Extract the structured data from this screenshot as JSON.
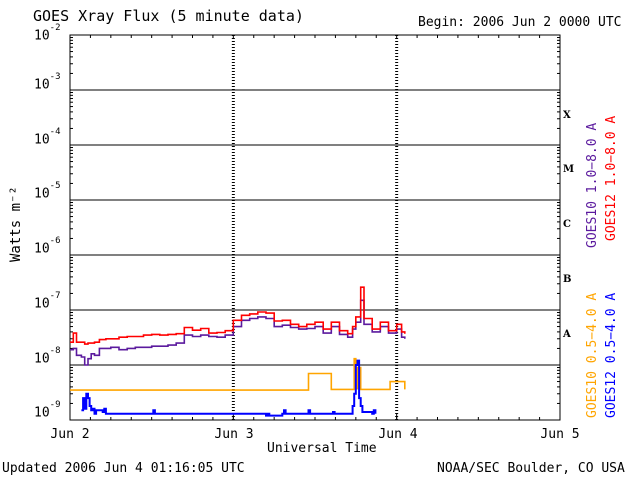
{
  "header": {
    "title": "GOES Xray Flux (5 minute data)",
    "begin": "Begin:  2006 Jun 2 0000 UTC"
  },
  "footer": {
    "updated": "Updated 2006 Jun  4 01:16:05 UTC",
    "credit": "NOAA/SEC Boulder, CO USA"
  },
  "colors": {
    "goes10_long": "#5b1a9e",
    "goes12_long": "#ff0000",
    "goes10_short": "#ffa500",
    "goes12_short": "#0000ff",
    "grid": "#000000"
  },
  "chart_data": {
    "type": "line",
    "title": "GOES Xray Flux (5 minute data)",
    "xlabel": "Universal Time",
    "ylabel": "Watts m⁻²",
    "y_scale": "log",
    "ylim": [
      1e-09,
      0.01
    ],
    "xlim": [
      0,
      3
    ],
    "x_unit": "days since 2006 Jun 2 0000 UTC",
    "x_tick_labels": [
      "Jun 2",
      "Jun 3",
      "Jun 4",
      "Jun 5"
    ],
    "x_tick_values": [
      0,
      1,
      2,
      3
    ],
    "y_tick_labels": [
      {
        "base": "10",
        "exp": "-9"
      },
      {
        "base": "10",
        "exp": "-8"
      },
      {
        "base": "10",
        "exp": "-7"
      },
      {
        "base": "10",
        "exp": "-6"
      },
      {
        "base": "10",
        "exp": "-5"
      },
      {
        "base": "10",
        "exp": "-4"
      },
      {
        "base": "10",
        "exp": "-3"
      },
      {
        "base": "10",
        "exp": "-2"
      }
    ],
    "flare_classes": [
      {
        "label": "A",
        "level": -8
      },
      {
        "label": "B",
        "level": -7
      },
      {
        "label": "C",
        "level": -6
      },
      {
        "label": "M",
        "level": -5
      },
      {
        "label": "X",
        "level": -4
      }
    ],
    "grid": "horizontal lines at each decade, dashed vertical day markers",
    "series": [
      {
        "name": "GOES10 1.0-8.0 A",
        "color": "#5b1a9e",
        "x": [
          0.0,
          0.02,
          0.04,
          0.07,
          0.09,
          0.11,
          0.13,
          0.15,
          0.18,
          0.22,
          0.25,
          0.3,
          0.35,
          0.4,
          0.45,
          0.5,
          0.55,
          0.6,
          0.65,
          0.7,
          0.75,
          0.8,
          0.85,
          0.9,
          0.95,
          1.0,
          1.05,
          1.1,
          1.15,
          1.2,
          1.25,
          1.3,
          1.35,
          1.4,
          1.45,
          1.5,
          1.55,
          1.6,
          1.65,
          1.7,
          1.73,
          1.75,
          1.78,
          1.8,
          1.85,
          1.9,
          1.95,
          2.0,
          2.03,
          2.05
        ],
        "y": [
          1.9e-08,
          2e-08,
          1.5e-08,
          1.4e-08,
          1e-08,
          1.3e-08,
          1.6e-08,
          1.5e-08,
          2e-08,
          2e-08,
          2.1e-08,
          1.9e-08,
          2e-08,
          2.1e-08,
          2.1e-08,
          2.2e-08,
          2.2e-08,
          2.3e-08,
          2.5e-08,
          3.5e-08,
          3.3e-08,
          3.5e-08,
          3.3e-08,
          3.2e-08,
          3.5e-08,
          5e-08,
          6.5e-08,
          7e-08,
          7.5e-08,
          7e-08,
          5e-08,
          5.3e-08,
          4.8e-08,
          4.5e-08,
          4.6e-08,
          5e-08,
          3.8e-08,
          5e-08,
          3.6e-08,
          3.2e-08,
          4.5e-08,
          6e-08,
          1.5e-07,
          5.5e-08,
          4e-08,
          5e-08,
          3.8e-08,
          4.5e-08,
          3.2e-08,
          3e-08
        ]
      },
      {
        "name": "GOES12 1.0-8.0 A",
        "color": "#ff0000",
        "x": [
          0.0,
          0.02,
          0.04,
          0.07,
          0.09,
          0.11,
          0.13,
          0.15,
          0.18,
          0.22,
          0.25,
          0.3,
          0.35,
          0.4,
          0.45,
          0.5,
          0.55,
          0.6,
          0.65,
          0.7,
          0.75,
          0.8,
          0.85,
          0.9,
          0.95,
          1.0,
          1.05,
          1.1,
          1.15,
          1.2,
          1.25,
          1.3,
          1.35,
          1.4,
          1.45,
          1.5,
          1.55,
          1.6,
          1.65,
          1.7,
          1.73,
          1.75,
          1.78,
          1.8,
          1.85,
          1.9,
          1.95,
          2.0,
          2.03,
          2.05
        ],
        "y": [
          2.6e-08,
          3.8e-08,
          2.6e-08,
          2.6e-08,
          2.4e-08,
          2.5e-08,
          2.5e-08,
          2.6e-08,
          2.9e-08,
          3e-08,
          3e-08,
          3.2e-08,
          3.3e-08,
          3.3e-08,
          3.5e-08,
          3.6e-08,
          3.5e-08,
          3.6e-08,
          3.7e-08,
          4.8e-08,
          4.3e-08,
          4.6e-08,
          3.8e-08,
          3.9e-08,
          4.2e-08,
          6.5e-08,
          8e-08,
          8.5e-08,
          9.2e-08,
          8.8e-08,
          6.3e-08,
          6.5e-08,
          5.5e-08,
          5e-08,
          5.5e-08,
          6e-08,
          4.5e-08,
          6e-08,
          4.2e-08,
          3.7e-08,
          5e-08,
          7.5e-08,
          2.6e-07,
          7e-08,
          4.5e-08,
          6e-08,
          4.2e-08,
          5.5e-08,
          4e-08,
          3.7e-08
        ]
      },
      {
        "name": "GOES10 0.5-4.0 A",
        "color": "#ffa500",
        "x": [
          0.0,
          0.2,
          0.4,
          0.6,
          0.8,
          1.0,
          1.2,
          1.4,
          1.45,
          1.46,
          1.6,
          1.72,
          1.74,
          1.75,
          1.76,
          1.78,
          1.9,
          1.95,
          1.96,
          2.05
        ],
        "y": [
          3.5e-09,
          3.5e-09,
          3.5e-09,
          3.5e-09,
          3.5e-09,
          3.5e-09,
          3.5e-09,
          3.5e-09,
          3.5e-09,
          7e-09,
          3.6e-09,
          3.6e-09,
          1.3e-08,
          3.7e-09,
          9e-09,
          3.6e-09,
          3.6e-09,
          3.6e-09,
          5e-09,
          3.6e-09
        ]
      },
      {
        "name": "GOES12 0.5-4.0 A",
        "color": "#0000ff",
        "x": [
          0.07,
          0.08,
          0.09,
          0.1,
          0.11,
          0.12,
          0.13,
          0.14,
          0.15,
          0.16,
          0.2,
          0.21,
          0.22,
          0.5,
          0.51,
          0.52,
          1.2,
          1.21,
          1.22,
          1.3,
          1.31,
          1.32,
          1.45,
          1.46,
          1.47,
          1.6,
          1.61,
          1.62,
          1.73,
          1.74,
          1.75,
          1.76,
          1.77,
          1.78,
          1.79,
          1.85,
          1.86,
          1.87
        ],
        "y": [
          1.5e-09,
          2.5e-09,
          1.6e-09,
          3e-09,
          2.5e-09,
          1.8e-09,
          1.5e-09,
          1.6e-09,
          1.3e-09,
          1.5e-09,
          1.4e-09,
          1.6e-09,
          1.3e-09,
          1.3e-09,
          1.5e-09,
          1.3e-09,
          1.2e-09,
          1.3e-09,
          1.2e-09,
          1.3e-09,
          1.5e-09,
          1.3e-09,
          1.3e-09,
          1.5e-09,
          1.3e-09,
          1.3e-09,
          1.4e-09,
          1.3e-09,
          1.8e-09,
          3e-09,
          1e-08,
          1.2e-08,
          2.5e-09,
          1.8e-09,
          1.4e-09,
          1.3e-09,
          1.5e-09,
          1.3e-09
        ]
      }
    ],
    "right_labels": [
      {
        "text": "GOES10 1.0−8.0 A",
        "color": "#5b1a9e"
      },
      {
        "text": "GOES12 1.0−8.0 A",
        "color": "#ff0000"
      },
      {
        "text": "GOES10 0.5−4.0 A",
        "color": "#ffa500"
      },
      {
        "text": "GOES12 0.5−4.0 A",
        "color": "#0000ff"
      }
    ]
  }
}
